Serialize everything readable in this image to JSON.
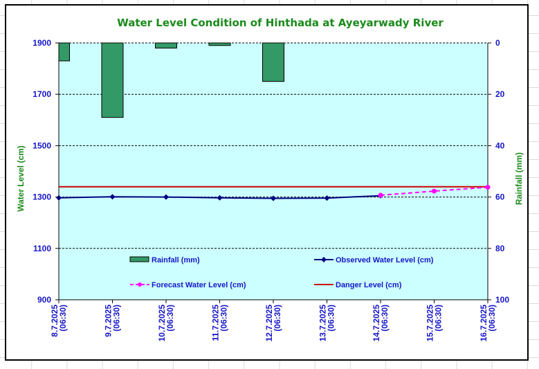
{
  "chart_data": {
    "type": "bar+line",
    "title": "Water Level Condition of Hinthada at Ayeyarwady River",
    "categories": [
      [
        "8.7.2025",
        "(06:30)"
      ],
      [
        "9.7.2025",
        "(06:30)"
      ],
      [
        "10.7.2025",
        "(06:30)"
      ],
      [
        "11.7.2025",
        "(06:30)"
      ],
      [
        "12.7.2025",
        "(06:30)"
      ],
      [
        "13.7.2025",
        "(06:30)"
      ],
      [
        "14.7.2025",
        "(06:30)"
      ],
      [
        "15.7.2025",
        "(06:30)"
      ],
      [
        "16.7.2025",
        "(06:30)"
      ]
    ],
    "y_left": {
      "label": "Water Level (cm)",
      "ylim": [
        900,
        1900
      ],
      "ticks": [
        900,
        1100,
        1300,
        1500,
        1700,
        1900
      ]
    },
    "y_right": {
      "label": "Rainfall (mm)",
      "ylim": [
        0,
        100
      ],
      "inverted": true,
      "ticks": [
        0,
        20,
        40,
        60,
        80,
        100
      ]
    },
    "grid": "horizontal dashed",
    "series": [
      {
        "name": "Rainfall (mm)",
        "type": "bar",
        "axis": "right",
        "color": "#339966",
        "values": [
          7,
          29,
          2,
          1,
          15,
          0,
          0,
          0,
          0
        ]
      },
      {
        "name": "Observed Water Level (cm)",
        "type": "line",
        "axis": "left",
        "color": "#000080",
        "marker": "diamond",
        "values": [
          1297,
          1301,
          1300,
          1297,
          1295,
          1296,
          1305,
          null,
          null
        ]
      },
      {
        "name": "Forecast Water Level (cm)",
        "type": "line",
        "axis": "left",
        "color": "#ff00ff",
        "dashed": true,
        "marker": "circle",
        "values": [
          null,
          null,
          null,
          null,
          null,
          null,
          1307,
          1323,
          1338
        ]
      },
      {
        "name": "Danger Level (cm)",
        "type": "line",
        "axis": "left",
        "color": "#cc0000",
        "values": [
          1340,
          1340,
          1340,
          1340,
          1340,
          1340,
          1340,
          1340,
          1340
        ]
      }
    ],
    "legend": {
      "placement": "inside-bottom",
      "entries": [
        "Rainfall (mm)",
        "Observed Water Level (cm)",
        "Forecast Water Level (cm)",
        "Danger Level (cm)"
      ]
    },
    "colors": {
      "plot_background": "#ccffff",
      "tick_text": "#1515c8",
      "title_text": "#1a8a1a"
    }
  }
}
